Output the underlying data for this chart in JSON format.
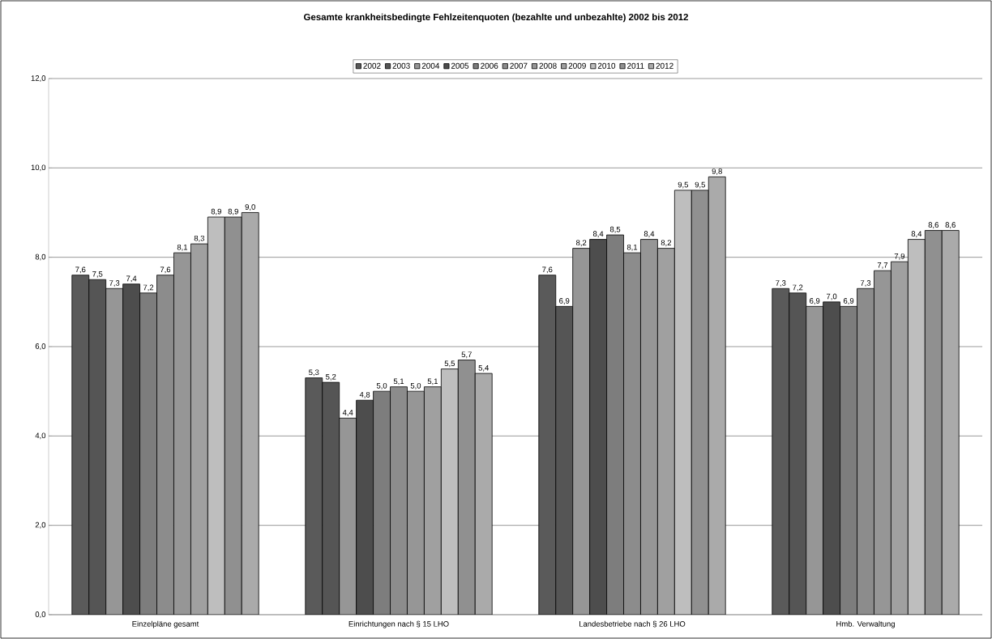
{
  "chart_data": {
    "type": "bar",
    "title": "Gesamte krankheitsbedingte Fehlzeitenquoten (bezahlte und unbezahlte) 2002 bis 2012",
    "categories": [
      "Einzelpläne gesamt",
      "Einrichtungen nach § 15 LHO",
      "Landesbetriebe nach § 26 LHO",
      "Hmb. Verwaltung"
    ],
    "series": [
      {
        "name": "2002",
        "color": "#5a5a5a",
        "values": [
          7.6,
          5.3,
          7.6,
          7.3
        ],
        "value_labels": [
          "7,6",
          "5,3",
          "7,6",
          "7,3"
        ]
      },
      {
        "name": "2003",
        "color": "#555555",
        "values": [
          7.5,
          5.2,
          6.9,
          7.2
        ],
        "value_labels": [
          "7,5",
          "5,2",
          "6,9",
          "7,2"
        ]
      },
      {
        "name": "2004",
        "color": "#969696",
        "values": [
          7.3,
          4.4,
          8.2,
          6.9
        ],
        "value_labels": [
          "7,3",
          "4,4",
          "8,2",
          "6,9"
        ]
      },
      {
        "name": "2005",
        "color": "#4d4d4d",
        "values": [
          7.4,
          4.8,
          8.4,
          7.0
        ],
        "value_labels": [
          "7,4",
          "4,8",
          "8,4",
          "7,0"
        ]
      },
      {
        "name": "2006",
        "color": "#7d7d7d",
        "values": [
          7.2,
          5.0,
          8.5,
          6.9
        ],
        "value_labels": [
          "7,2",
          "5,0",
          "8,5",
          "6,9"
        ]
      },
      {
        "name": "2007",
        "color": "#8c8c8c",
        "values": [
          7.6,
          5.1,
          8.1,
          7.3
        ],
        "value_labels": [
          "7,6",
          "5,1",
          "8,1",
          "7,3"
        ]
      },
      {
        "name": "2008",
        "color": "#969696",
        "values": [
          8.1,
          5.0,
          8.4,
          7.7
        ],
        "value_labels": [
          "8,1",
          "5,0",
          "8,4",
          "7,7"
        ]
      },
      {
        "name": "2009",
        "color": "#a0a0a0",
        "values": [
          8.3,
          5.1,
          8.2,
          7.9
        ],
        "value_labels": [
          "8,3",
          "5,1",
          "8,2",
          "7,9"
        ]
      },
      {
        "name": "2010",
        "color": "#bebebe",
        "values": [
          8.9,
          5.5,
          9.5,
          8.4
        ],
        "value_labels": [
          "8,9",
          "5,5",
          "9,5",
          "8,4"
        ]
      },
      {
        "name": "2011",
        "color": "#909090",
        "values": [
          8.9,
          5.7,
          9.5,
          8.6
        ],
        "value_labels": [
          "8,9",
          "5,7",
          "9,5",
          "8,6"
        ]
      },
      {
        "name": "2012",
        "color": "#aaaaaa",
        "values": [
          9.0,
          5.4,
          9.8,
          8.6
        ],
        "value_labels": [
          "9,0",
          "5,4",
          "9,8",
          "8,6"
        ]
      }
    ],
    "ylim": [
      0,
      12
    ],
    "yticks": [
      {
        "value": 0,
        "label": "0,0"
      },
      {
        "value": 2,
        "label": "2,0"
      },
      {
        "value": 4,
        "label": "4,0"
      },
      {
        "value": 6,
        "label": "6,0"
      },
      {
        "value": 8,
        "label": "8,0"
      },
      {
        "value": 10,
        "label": "10,0"
      },
      {
        "value": 12,
        "label": "12,0"
      }
    ],
    "grid": "y",
    "legend": "top"
  }
}
